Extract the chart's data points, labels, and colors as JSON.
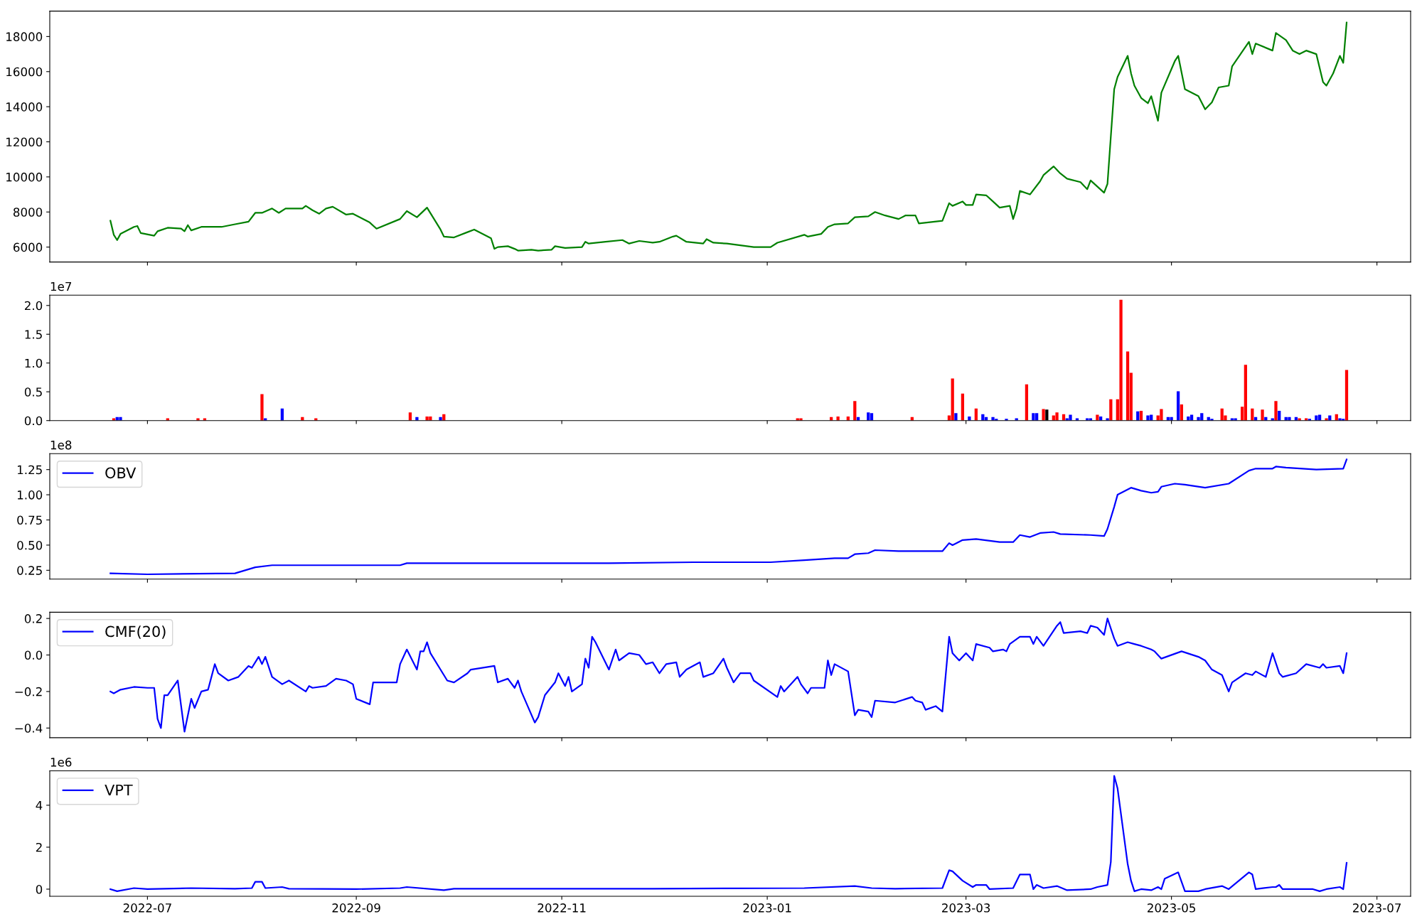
{
  "chart_data": [
    {
      "type": "line",
      "xlim": [
        "2022-06-02",
        "2023-07-11"
      ],
      "xticks": [
        "2022-07",
        "2022-09",
        "2022-11",
        "2023-01",
        "2023-03",
        "2023-05",
        "2023-07"
      ],
      "tick_labels": "y",
      "ylim": [
        5150,
        19450
      ],
      "yticks": [
        6000,
        8000,
        10000,
        12000,
        14000,
        16000,
        18000
      ],
      "x": [
        "2022-06-20",
        "2022-06-21",
        "2022-06-22",
        "2022-06-23",
        "2022-06-27",
        "2022-06-28",
        "2022-06-29",
        "2022-07-03",
        "2022-07-04",
        "2022-07-07",
        "2022-07-11",
        "2022-07-12",
        "2022-07-13",
        "2022-07-14",
        "2022-07-17",
        "2022-07-23",
        "2022-07-27",
        "2022-07-31",
        "2022-08-02",
        "2022-08-04",
        "2022-08-07",
        "2022-08-09",
        "2022-08-11",
        "2022-08-16",
        "2022-08-17",
        "2022-08-19",
        "2022-08-21",
        "2022-08-23",
        "2022-08-25",
        "2022-08-29",
        "2022-08-31",
        "2022-09-04",
        "2022-09-05",
        "2022-09-07",
        "2022-09-14",
        "2022-09-16",
        "2022-09-19",
        "2022-09-22",
        "2022-09-26",
        "2022-09-27",
        "2022-09-30",
        "2022-10-04",
        "2022-10-06",
        "2022-10-10",
        "2022-10-11",
        "2022-10-12",
        "2022-10-13",
        "2022-10-16",
        "2022-10-18",
        "2022-10-19",
        "2022-10-23",
        "2022-10-25",
        "2022-10-29",
        "2022-10-30",
        "2022-11-02",
        "2022-11-07",
        "2022-11-08",
        "2022-11-09",
        "2022-11-14",
        "2022-11-19",
        "2022-11-21",
        "2022-11-24",
        "2022-11-28",
        "2022-11-30",
        "2022-12-04",
        "2022-12-05",
        "2022-12-08",
        "2022-12-13",
        "2022-12-14",
        "2022-12-16",
        "2022-12-20",
        "2022-12-28",
        "2023-01-02",
        "2023-01-04",
        "2023-01-12",
        "2023-01-13",
        "2023-01-17",
        "2023-01-19",
        "2023-01-21",
        "2023-01-25",
        "2023-01-27",
        "2023-01-31",
        "2023-02-02",
        "2023-02-05",
        "2023-02-09",
        "2023-02-11",
        "2023-02-14",
        "2023-02-15",
        "2023-02-22",
        "2023-02-24",
        "2023-02-25",
        "2023-02-28",
        "2023-03-01",
        "2023-03-03",
        "2023-03-04",
        "2023-03-07",
        "2023-03-09",
        "2023-03-11",
        "2023-03-14",
        "2023-03-15",
        "2023-03-16",
        "2023-03-17",
        "2023-03-20",
        "2023-03-23",
        "2023-03-24",
        "2023-03-27",
        "2023-03-29",
        "2023-03-31",
        "2023-04-04",
        "2023-04-06",
        "2023-04-07",
        "2023-04-11",
        "2023-04-12",
        "2023-04-14",
        "2023-04-15",
        "2023-04-18",
        "2023-04-19",
        "2023-04-20",
        "2023-04-22",
        "2023-04-24",
        "2023-04-25",
        "2023-04-27",
        "2023-04-28",
        "2023-05-02",
        "2023-05-03",
        "2023-05-05",
        "2023-05-09",
        "2023-05-11",
        "2023-05-13",
        "2023-05-15",
        "2023-05-18",
        "2023-05-19",
        "2023-05-24",
        "2023-05-25",
        "2023-05-26",
        "2023-05-31",
        "2023-06-01",
        "2023-06-04",
        "2023-06-06",
        "2023-06-08",
        "2023-06-10",
        "2023-06-13",
        "2023-06-15",
        "2023-06-16",
        "2023-06-18",
        "2023-06-20",
        "2023-06-21",
        "2023-06-22"
      ],
      "series": [
        {
          "color": "#008000",
          "values": [
            7500,
            6700,
            6400,
            6750,
            7150,
            7200,
            6800,
            6650,
            6900,
            7100,
            7050,
            6900,
            7250,
            6950,
            7150,
            7150,
            7300,
            7450,
            7950,
            7950,
            8200,
            7950,
            8200,
            8200,
            8350,
            8100,
            7900,
            8200,
            8300,
            7850,
            7900,
            7500,
            7400,
            7050,
            7600,
            8050,
            7700,
            8250,
            7000,
            6600,
            6550,
            6850,
            7000,
            6600,
            6500,
            5900,
            6000,
            6050,
            5900,
            5800,
            5850,
            5800,
            5850,
            6050,
            5950,
            6000,
            6300,
            6200,
            6300,
            6400,
            6200,
            6350,
            6250,
            6300,
            6600,
            6650,
            6300,
            6200,
            6450,
            6250,
            6200,
            6000,
            6000,
            6250,
            6700,
            6600,
            6750,
            7150,
            7300,
            7350,
            7700,
            7750,
            8000,
            7800,
            7600,
            7800,
            7800,
            7350,
            7500,
            8500,
            8350,
            8600,
            8400,
            8400,
            9000,
            8950,
            8600,
            8250,
            8350,
            7600,
            8200,
            9200,
            9000,
            9750,
            10100,
            10600,
            10200,
            9900,
            9700,
            9300,
            9800,
            9100,
            9600,
            15000,
            15700,
            16900,
            15900,
            15200,
            14500,
            14200,
            14600,
            13200,
            14800,
            16600,
            16900,
            15000,
            14600,
            13850,
            14250,
            15100,
            15200,
            16300,
            17700,
            17000,
            17600,
            17200,
            18200,
            17800,
            17200,
            17000,
            17200,
            17000,
            15400,
            15200,
            15900,
            16900,
            16500,
            18800
          ]
        }
      ]
    },
    {
      "type": "bar",
      "xlim": [
        "2022-06-02",
        "2023-07-11"
      ],
      "xticks": [
        "2022-07",
        "2022-09",
        "2022-11",
        "2023-01",
        "2023-03",
        "2023-05",
        "2023-07"
      ],
      "tick_labels": "y",
      "ylim": [
        0,
        2.18
      ],
      "yticks": [
        {
          "value": 0,
          "label": "0.0"
        },
        {
          "value": 0.5,
          "label": "0.5"
        },
        {
          "value": 1.0,
          "label": "1.0"
        },
        {
          "value": 1.5,
          "label": "1.5"
        },
        {
          "value": 2.0,
          "label": "2.0"
        }
      ],
      "annotations": [
        "1e7"
      ],
      "x": [
        "2022-06-21",
        "2022-06-22",
        "2022-06-23",
        "2022-07-07",
        "2022-07-16",
        "2022-07-18",
        "2022-08-04",
        "2022-08-05",
        "2022-08-10",
        "2022-08-16",
        "2022-08-20",
        "2022-09-17",
        "2022-09-19",
        "2022-09-22",
        "2022-09-23",
        "2022-09-26",
        "2022-09-27",
        "2023-01-10",
        "2023-01-11",
        "2023-01-20",
        "2023-01-22",
        "2023-01-25",
        "2023-01-27",
        "2023-01-28",
        "2023-01-31",
        "2023-02-01",
        "2023-02-13",
        "2023-02-24",
        "2023-02-25",
        "2023-02-26",
        "2023-02-28",
        "2023-03-02",
        "2023-03-04",
        "2023-03-06",
        "2023-03-07",
        "2023-03-09",
        "2023-03-10",
        "2023-03-13",
        "2023-03-16",
        "2023-03-19",
        "2023-03-21",
        "2023-03-22",
        "2023-03-24",
        "2023-03-25",
        "2023-03-27",
        "2023-03-28",
        "2023-03-30",
        "2023-03-31",
        "2023-04-01",
        "2023-04-03",
        "2023-04-06",
        "2023-04-07",
        "2023-04-09",
        "2023-04-10",
        "2023-04-12",
        "2023-04-13",
        "2023-04-15",
        "2023-04-16",
        "2023-04-18",
        "2023-04-19",
        "2023-04-21",
        "2023-04-22",
        "2023-04-24",
        "2023-04-25",
        "2023-04-27",
        "2023-04-28",
        "2023-04-30",
        "2023-05-01",
        "2023-05-03",
        "2023-05-04",
        "2023-05-06",
        "2023-05-07",
        "2023-05-09",
        "2023-05-10",
        "2023-05-12",
        "2023-05-13",
        "2023-05-16",
        "2023-05-17",
        "2023-05-19",
        "2023-05-20",
        "2023-05-22",
        "2023-05-23",
        "2023-05-25",
        "2023-05-26",
        "2023-05-28",
        "2023-05-29",
        "2023-05-31",
        "2023-06-01",
        "2023-06-02",
        "2023-06-04",
        "2023-06-05",
        "2023-06-07",
        "2023-06-08",
        "2023-06-10",
        "2023-06-11",
        "2023-06-13",
        "2023-06-14",
        "2023-06-16",
        "2023-06-17",
        "2023-06-19",
        "2023-06-20",
        "2023-06-21",
        "2023-06-22"
      ],
      "values": [
        0.04,
        0.06,
        0.06,
        0.04,
        0.04,
        0.04,
        0.46,
        0.04,
        0.21,
        0.06,
        0.04,
        0.14,
        0.06,
        0.07,
        0.07,
        0.06,
        0.11,
        0.04,
        0.04,
        0.06,
        0.07,
        0.07,
        0.34,
        0.06,
        0.14,
        0.13,
        0.06,
        0.09,
        0.73,
        0.13,
        0.47,
        0.07,
        0.21,
        0.11,
        0.06,
        0.06,
        0.03,
        0.03,
        0.04,
        0.63,
        0.13,
        0.13,
        0.2,
        0.19,
        0.09,
        0.14,
        0.11,
        0.04,
        0.1,
        0.04,
        0.04,
        0.04,
        0.1,
        0.07,
        0.04,
        0.37,
        0.37,
        2.1,
        1.2,
        0.83,
        0.16,
        0.17,
        0.09,
        0.1,
        0.09,
        0.2,
        0.06,
        0.06,
        0.51,
        0.28,
        0.07,
        0.1,
        0.06,
        0.13,
        0.06,
        0.03,
        0.21,
        0.09,
        0.04,
        0.04,
        0.24,
        0.97,
        0.21,
        0.06,
        0.19,
        0.06,
        0.04,
        0.34,
        0.17,
        0.06,
        0.06,
        0.06,
        0.04,
        0.04,
        0.03,
        0.09,
        0.1,
        0.04,
        0.09,
        0.11,
        0.04,
        0.03,
        0.88
      ],
      "colors": [
        "#ff0000",
        "#0000ff",
        "#0000ff",
        "#ff0000",
        "#ff0000",
        "#ff0000",
        "#ff0000",
        "#0000ff",
        "#0000ff",
        "#ff0000",
        "#ff0000",
        "#ff0000",
        "#0000ff",
        "#ff0000",
        "#ff0000",
        "#0000ff",
        "#ff0000",
        "#ff0000",
        "#ff0000",
        "#ff0000",
        "#ff0000",
        "#ff0000",
        "#ff0000",
        "#0000ff",
        "#0000ff",
        "#0000ff",
        "#ff0000",
        "#ff0000",
        "#ff0000",
        "#0000ff",
        "#ff0000",
        "#0000ff",
        "#ff0000",
        "#0000ff",
        "#0000ff",
        "#0000ff",
        "#0000ff",
        "#0000ff",
        "#0000ff",
        "#ff0000",
        "#0000ff",
        "#0000ff",
        "#ff0000",
        "#000000",
        "#ff0000",
        "#ff0000",
        "#ff0000",
        "#0000ff",
        "#0000ff",
        "#0000ff",
        "#0000ff",
        "#0000ff",
        "#ff0000",
        "#0000ff",
        "#0000ff",
        "#ff0000",
        "#ff0000",
        "#ff0000",
        "#ff0000",
        "#ff0000",
        "#0000ff",
        "#ff0000",
        "#0000ff",
        "#0000ff",
        "#ff0000",
        "#ff0000",
        "#0000ff",
        "#0000ff",
        "#0000ff",
        "#ff0000",
        "#0000ff",
        "#0000ff",
        "#0000ff",
        "#0000ff",
        "#0000ff",
        "#0000ff",
        "#ff0000",
        "#ff0000",
        "#0000ff",
        "#0000ff",
        "#ff0000",
        "#ff0000",
        "#ff0000",
        "#0000ff",
        "#ff0000",
        "#0000ff",
        "#0000ff",
        "#ff0000",
        "#0000ff",
        "#0000ff",
        "#0000ff",
        "#0000ff",
        "#ff0000",
        "#ff0000",
        "#0000ff",
        "#0000ff",
        "#0000ff",
        "#ff0000",
        "#0000ff",
        "#ff0000",
        "#0000ff",
        "#0000ff",
        "#ff0000"
      ]
    },
    {
      "type": "line",
      "xlim": [
        "2022-06-02",
        "2023-07-11"
      ],
      "xticks": [
        "2022-07",
        "2022-09",
        "2022-11",
        "2023-01",
        "2023-03",
        "2023-05",
        "2023-07"
      ],
      "tick_labels": "y",
      "ylim": [
        0.162,
        1.408
      ],
      "yticks": [
        {
          "value": 0.25,
          "label": "0.25"
        },
        {
          "value": 0.5,
          "label": "0.50"
        },
        {
          "value": 0.75,
          "label": "0.75"
        },
        {
          "value": 1.0,
          "label": "1.00"
        },
        {
          "value": 1.25,
          "label": "1.25"
        }
      ],
      "annotations": [
        "1e8"
      ],
      "legend": "top left",
      "x": [
        "2022-06-20",
        "2022-07-01",
        "2022-07-27",
        "2022-08-02",
        "2022-08-07",
        "2022-09-14",
        "2022-09-16",
        "2022-10-15",
        "2022-11-15",
        "2022-12-10",
        "2023-01-02",
        "2023-01-12",
        "2023-01-21",
        "2023-01-25",
        "2023-01-27",
        "2023-01-31",
        "2023-02-02",
        "2023-02-09",
        "2023-02-22",
        "2023-02-24",
        "2023-02-25",
        "2023-02-28",
        "2023-03-04",
        "2023-03-11",
        "2023-03-15",
        "2023-03-17",
        "2023-03-20",
        "2023-03-23",
        "2023-03-27",
        "2023-03-29",
        "2023-04-07",
        "2023-04-11",
        "2023-04-12",
        "2023-04-14",
        "2023-04-15",
        "2023-04-19",
        "2023-04-22",
        "2023-04-25",
        "2023-04-27",
        "2023-04-28",
        "2023-05-02",
        "2023-05-05",
        "2023-05-11",
        "2023-05-18",
        "2023-05-24",
        "2023-05-26",
        "2023-05-31",
        "2023-06-01",
        "2023-06-04",
        "2023-06-13",
        "2023-06-21",
        "2023-06-22"
      ],
      "series": [
        {
          "name": "OBV",
          "color": "#0000ff",
          "values": [
            0.22,
            0.21,
            0.22,
            0.28,
            0.3,
            0.3,
            0.32,
            0.32,
            0.32,
            0.33,
            0.33,
            0.35,
            0.37,
            0.37,
            0.41,
            0.42,
            0.45,
            0.44,
            0.44,
            0.52,
            0.5,
            0.55,
            0.56,
            0.53,
            0.53,
            0.6,
            0.58,
            0.62,
            0.63,
            0.61,
            0.6,
            0.59,
            0.66,
            0.88,
            1.0,
            1.07,
            1.04,
            1.02,
            1.03,
            1.08,
            1.11,
            1.1,
            1.07,
            1.11,
            1.24,
            1.26,
            1.26,
            1.28,
            1.27,
            1.25,
            1.26,
            1.35
          ]
        }
      ]
    },
    {
      "type": "line",
      "xlim": [
        "2022-06-02",
        "2023-07-11"
      ],
      "xticks": [
        "2022-07",
        "2022-09",
        "2022-11",
        "2023-01",
        "2023-03",
        "2023-05",
        "2023-07"
      ],
      "tick_labels": "y",
      "ylim": [
        -0.453,
        0.234
      ],
      "yticks": [
        {
          "value": -0.4,
          "label": "−0.4"
        },
        {
          "value": -0.2,
          "label": "−0.2"
        },
        {
          "value": 0,
          "label": "0.0"
        },
        {
          "value": 0.2,
          "label": "0.2"
        }
      ],
      "legend": "top left",
      "x": [
        "2022-06-20",
        "2022-06-21",
        "2022-06-23",
        "2022-06-27",
        "2022-07-01",
        "2022-07-03",
        "2022-07-04",
        "2022-07-05",
        "2022-07-06",
        "2022-07-07",
        "2022-07-10",
        "2022-07-12",
        "2022-07-14",
        "2022-07-15",
        "2022-07-17",
        "2022-07-19",
        "2022-07-21",
        "2022-07-22",
        "2022-07-25",
        "2022-07-28",
        "2022-07-31",
        "2022-08-01",
        "2022-08-03",
        "2022-08-04",
        "2022-08-05",
        "2022-08-07",
        "2022-08-10",
        "2022-08-12",
        "2022-08-17",
        "2022-08-18",
        "2022-08-19",
        "2022-08-23",
        "2022-08-26",
        "2022-08-29",
        "2022-08-31",
        "2022-09-01",
        "2022-09-05",
        "2022-09-06",
        "2022-09-13",
        "2022-09-14",
        "2022-09-16",
        "2022-09-19",
        "2022-09-20",
        "2022-09-21",
        "2022-09-22",
        "2022-09-23",
        "2022-09-27",
        "2022-09-28",
        "2022-09-30",
        "2022-10-04",
        "2022-10-05",
        "2022-10-12",
        "2022-10-13",
        "2022-10-16",
        "2022-10-18",
        "2022-10-19",
        "2022-10-20",
        "2022-10-24",
        "2022-10-25",
        "2022-10-27",
        "2022-10-30",
        "2022-10-31",
        "2022-11-02",
        "2022-11-03",
        "2022-11-04",
        "2022-11-07",
        "2022-11-08",
        "2022-11-09",
        "2022-11-10",
        "2022-11-11",
        "2022-11-15",
        "2022-11-17",
        "2022-11-18",
        "2022-11-21",
        "2022-11-24",
        "2022-11-26",
        "2022-11-28",
        "2022-11-30",
        "2022-12-02",
        "2022-12-05",
        "2022-12-06",
        "2022-12-08",
        "2022-12-12",
        "2022-12-13",
        "2022-12-16",
        "2022-12-19",
        "2022-12-20",
        "2022-12-22",
        "2022-12-24",
        "2022-12-27",
        "2022-12-28",
        "2023-01-04",
        "2023-01-05",
        "2023-01-06",
        "2023-01-10",
        "2023-01-11",
        "2023-01-13",
        "2023-01-14",
        "2023-01-18",
        "2023-01-19",
        "2023-01-20",
        "2023-01-21",
        "2023-01-25",
        "2023-01-27",
        "2023-01-28",
        "2023-01-31",
        "2023-02-01",
        "2023-02-02",
        "2023-02-08",
        "2023-02-13",
        "2023-02-14",
        "2023-02-16",
        "2023-02-17",
        "2023-02-20",
        "2023-02-22",
        "2023-02-24",
        "2023-02-25",
        "2023-02-27",
        "2023-03-01",
        "2023-03-03",
        "2023-03-04",
        "2023-03-08",
        "2023-03-09",
        "2023-03-12",
        "2023-03-13",
        "2023-03-14",
        "2023-03-17",
        "2023-03-20",
        "2023-03-21",
        "2023-03-22",
        "2023-03-24",
        "2023-03-28",
        "2023-03-29",
        "2023-03-30",
        "2023-04-04",
        "2023-04-06",
        "2023-04-07",
        "2023-04-09",
        "2023-04-11",
        "2023-04-12",
        "2023-04-14",
        "2023-04-15",
        "2023-04-18",
        "2023-04-20",
        "2023-04-22",
        "2023-04-25",
        "2023-04-26",
        "2023-04-28",
        "2023-05-04",
        "2023-05-09",
        "2023-05-11",
        "2023-05-13",
        "2023-05-16",
        "2023-05-18",
        "2023-05-19",
        "2023-05-23",
        "2023-05-25",
        "2023-05-26",
        "2023-05-29",
        "2023-05-31",
        "2023-06-02",
        "2023-06-03",
        "2023-06-07",
        "2023-06-10",
        "2023-06-14",
        "2023-06-15",
        "2023-06-16",
        "2023-06-20",
        "2023-06-21",
        "2023-06-22"
      ],
      "series": [
        {
          "name": "CMF(20)",
          "color": "#0000ff",
          "values": [
            -0.2,
            -0.21,
            -0.19,
            -0.175,
            -0.18,
            -0.18,
            -0.35,
            -0.4,
            -0.22,
            -0.22,
            -0.14,
            -0.42,
            -0.24,
            -0.29,
            -0.2,
            -0.19,
            -0.05,
            -0.1,
            -0.14,
            -0.12,
            -0.06,
            -0.07,
            -0.01,
            -0.05,
            -0.01,
            -0.12,
            -0.16,
            -0.14,
            -0.2,
            -0.17,
            -0.18,
            -0.17,
            -0.13,
            -0.14,
            -0.16,
            -0.24,
            -0.27,
            -0.15,
            -0.15,
            -0.05,
            0.03,
            -0.08,
            0.02,
            0.02,
            0.07,
            0.01,
            -0.11,
            -0.14,
            -0.15,
            -0.1,
            -0.08,
            -0.06,
            -0.15,
            -0.13,
            -0.18,
            -0.14,
            -0.2,
            -0.37,
            -0.34,
            -0.22,
            -0.15,
            -0.1,
            -0.17,
            -0.12,
            -0.2,
            -0.16,
            -0.02,
            -0.07,
            0.1,
            0.07,
            -0.08,
            0.03,
            -0.03,
            0.01,
            0.0,
            -0.05,
            -0.04,
            -0.1,
            -0.05,
            -0.04,
            -0.12,
            -0.08,
            -0.04,
            -0.12,
            -0.1,
            -0.02,
            -0.07,
            -0.15,
            -0.1,
            -0.1,
            -0.14,
            -0.23,
            -0.17,
            -0.2,
            -0.12,
            -0.16,
            -0.21,
            -0.18,
            -0.18,
            -0.03,
            -0.11,
            -0.05,
            -0.09,
            -0.33,
            -0.3,
            -0.31,
            -0.34,
            -0.25,
            -0.26,
            -0.23,
            -0.25,
            -0.26,
            -0.3,
            -0.28,
            -0.31,
            0.1,
            0.01,
            -0.03,
            0.01,
            -0.03,
            0.06,
            0.04,
            0.02,
            0.03,
            0.02,
            0.06,
            0.1,
            0.1,
            0.06,
            0.1,
            0.05,
            0.16,
            0.18,
            0.12,
            0.13,
            0.12,
            0.16,
            0.15,
            0.11,
            0.2,
            0.09,
            0.05,
            0.07,
            0.06,
            0.05,
            0.03,
            0.02,
            -0.02,
            0.02,
            -0.01,
            -0.03,
            -0.08,
            -0.11,
            -0.2,
            -0.15,
            -0.1,
            -0.11,
            -0.09,
            -0.12,
            0.01,
            -0.1,
            -0.12,
            -0.1,
            -0.05,
            -0.07,
            -0.05,
            -0.07,
            -0.06,
            -0.1,
            0.01
          ]
        }
      ]
    },
    {
      "type": "line",
      "xlim": [
        "2022-06-02",
        "2023-07-11"
      ],
      "xticks": [
        "2022-07",
        "2022-09",
        "2022-11",
        "2023-01",
        "2023-03",
        "2023-05",
        "2023-07"
      ],
      "ylim": [
        -0.34,
        5.64
      ],
      "yticks": [
        0,
        2,
        4
      ],
      "annotations": [
        "1e6"
      ],
      "legend": "top left",
      "x": [
        "2022-06-20",
        "2022-06-22",
        "2022-06-27",
        "2022-07-01",
        "2022-07-14",
        "2022-07-27",
        "2022-08-01",
        "2022-08-02",
        "2022-08-04",
        "2022-08-05",
        "2022-08-10",
        "2022-08-12",
        "2022-09-01",
        "2022-09-14",
        "2022-09-16",
        "2022-09-27",
        "2022-09-30",
        "2022-10-24",
        "2022-11-28",
        "2023-01-12",
        "2023-01-27",
        "2023-02-01",
        "2023-02-08",
        "2023-02-22",
        "2023-02-24",
        "2023-02-25",
        "2023-02-28",
        "2023-03-03",
        "2023-03-04",
        "2023-03-07",
        "2023-03-08",
        "2023-03-15",
        "2023-03-17",
        "2023-03-20",
        "2023-03-21",
        "2023-03-22",
        "2023-03-24",
        "2023-03-28",
        "2023-03-31",
        "2023-04-07",
        "2023-04-09",
        "2023-04-12",
        "2023-04-13",
        "2023-04-14",
        "2023-04-15",
        "2023-04-18",
        "2023-04-19",
        "2023-04-20",
        "2023-04-22",
        "2023-04-25",
        "2023-04-27",
        "2023-04-28",
        "2023-04-29",
        "2023-05-03",
        "2023-05-05",
        "2023-05-09",
        "2023-05-11",
        "2023-05-16",
        "2023-05-18",
        "2023-05-24",
        "2023-05-25",
        "2023-05-26",
        "2023-05-31",
        "2023-06-01",
        "2023-06-02",
        "2023-06-03",
        "2023-06-08",
        "2023-06-12",
        "2023-06-14",
        "2023-06-16",
        "2023-06-20",
        "2023-06-21",
        "2023-06-22"
      ],
      "series": [
        {
          "name": "VPT",
          "color": "#0000ff",
          "values": [
            0,
            -0.1,
            0.05,
            0,
            0.05,
            0.02,
            0.05,
            0.35,
            0.35,
            0.05,
            0.1,
            0.02,
            0,
            0.05,
            0.1,
            -0.05,
            0.02,
            0.02,
            0.02,
            0.05,
            0.15,
            0.05,
            0.02,
            0.05,
            0.9,
            0.85,
            0.4,
            0.1,
            0.2,
            0.2,
            0,
            0.05,
            0.7,
            0.7,
            0,
            0.2,
            0.05,
            0.15,
            -0.05,
            0,
            0.1,
            0.2,
            1.3,
            5.4,
            4.8,
            1.2,
            0.4,
            -0.1,
            0,
            -0.05,
            0.1,
            0,
            0.5,
            0.8,
            -0.1,
            -0.1,
            0,
            0.15,
            0,
            0.8,
            0.7,
            0,
            0.1,
            0.1,
            0.2,
            0,
            0,
            0,
            -0.1,
            0,
            0.1,
            0,
            1.25
          ]
        }
      ]
    }
  ]
}
